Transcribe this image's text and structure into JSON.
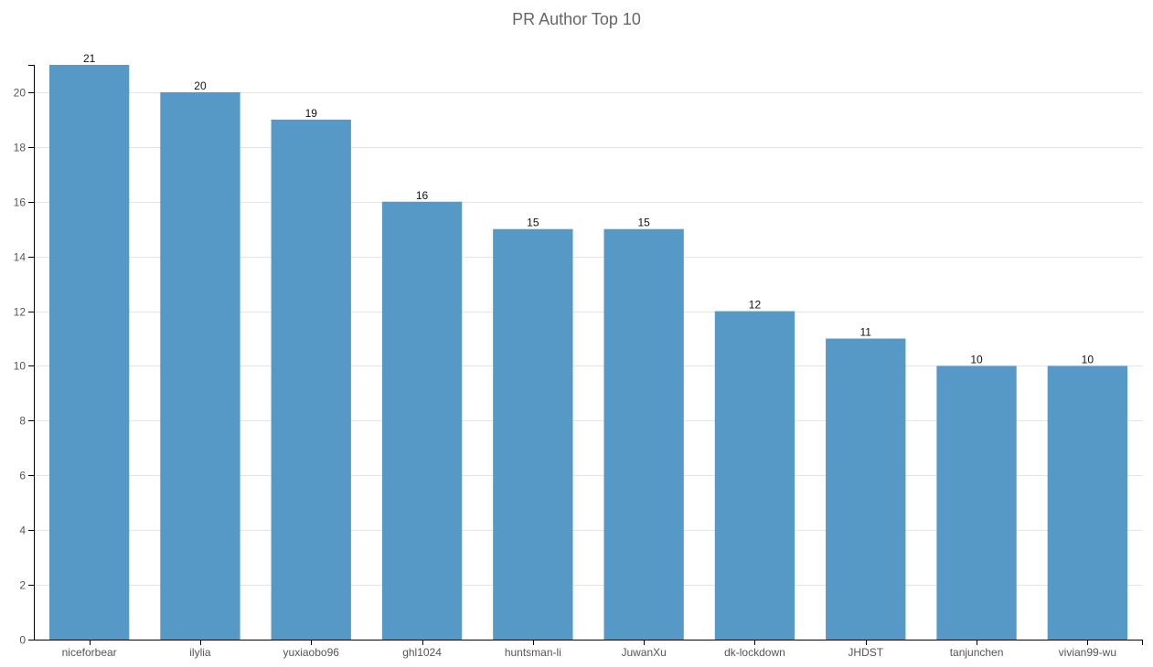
{
  "chart_data": {
    "type": "bar",
    "title": "PR Author Top 10",
    "xlabel": "",
    "ylabel": "",
    "categories": [
      "niceforbear",
      "ilylia",
      "yuxiaobo96",
      "ghl1024",
      "huntsman-li",
      "JuwanXu",
      "dk-lockdown",
      "JHDST",
      "tanjunchen",
      "vivian99-wu"
    ],
    "values": [
      21,
      20,
      19,
      16,
      15,
      15,
      12,
      11,
      10,
      10
    ],
    "ylim": [
      0,
      21
    ],
    "yticks": [
      0,
      2,
      4,
      6,
      8,
      10,
      12,
      14,
      16,
      18,
      20
    ],
    "grid": true,
    "bar_color": "#5699c6",
    "data_labels": true
  }
}
